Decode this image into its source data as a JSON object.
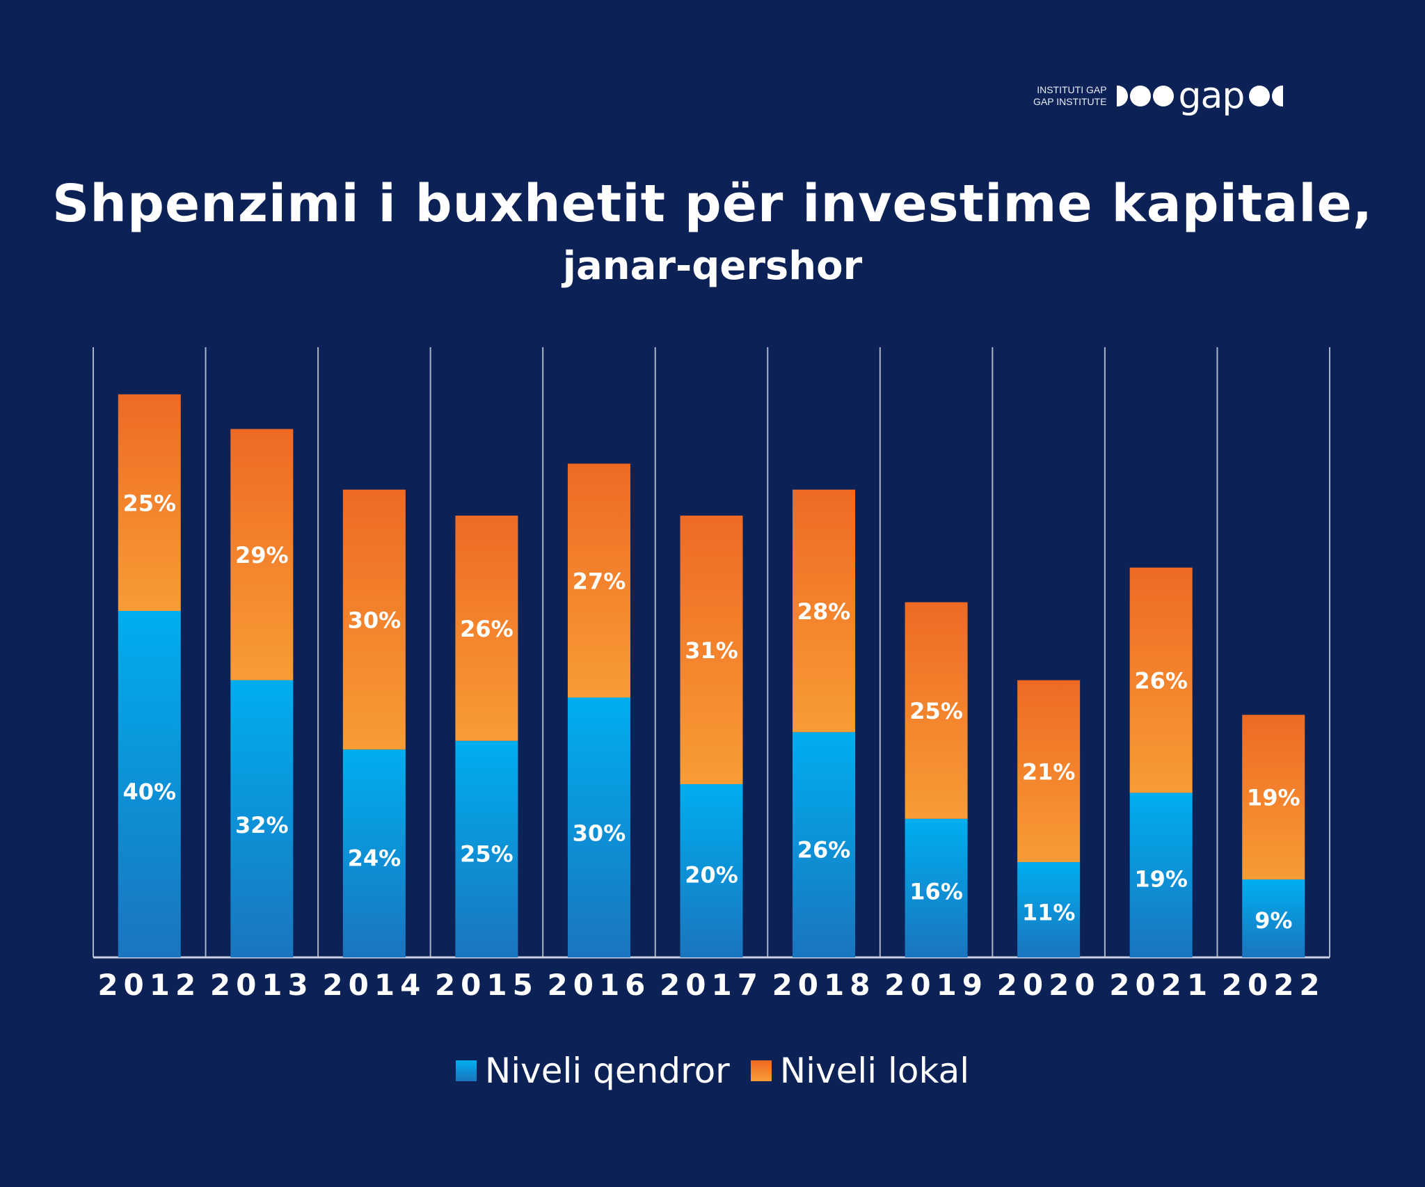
{
  "logo": {
    "line1": "INSTITUTI GAP",
    "line2": "GAP INSTITUTE",
    "word": "gap"
  },
  "chart_data": {
    "type": "bar",
    "stacked": true,
    "title": "Shpenzimi i buxhetit për investime kapitale,",
    "subtitle": "janar-qershor",
    "categories": [
      "2012",
      "2013",
      "2014",
      "2015",
      "2016",
      "2017",
      "2018",
      "2019",
      "2020",
      "2021",
      "2022"
    ],
    "series": [
      {
        "name": "Niveli qendror",
        "color": "#0a9be0",
        "values": [
          40,
          32,
          24,
          25,
          30,
          20,
          26,
          16,
          11,
          19,
          9
        ],
        "labels": [
          "40%",
          "32%",
          "24%",
          "25%",
          "30%",
          "20%",
          "26%",
          "16%",
          "11%",
          "19%",
          "9%"
        ]
      },
      {
        "name": "Niveli lokal",
        "color": "#f58a2e",
        "values": [
          25,
          29,
          30,
          26,
          27,
          31,
          28,
          25,
          21,
          26,
          19
        ],
        "labels": [
          "25%",
          "29%",
          "30%",
          "26%",
          "27%",
          "31%",
          "28%",
          "25%",
          "21%",
          "26%",
          "19%"
        ]
      }
    ],
    "ylim": [
      0,
      70
    ],
    "grid": "vertical separators",
    "legend": "bottom-center"
  }
}
